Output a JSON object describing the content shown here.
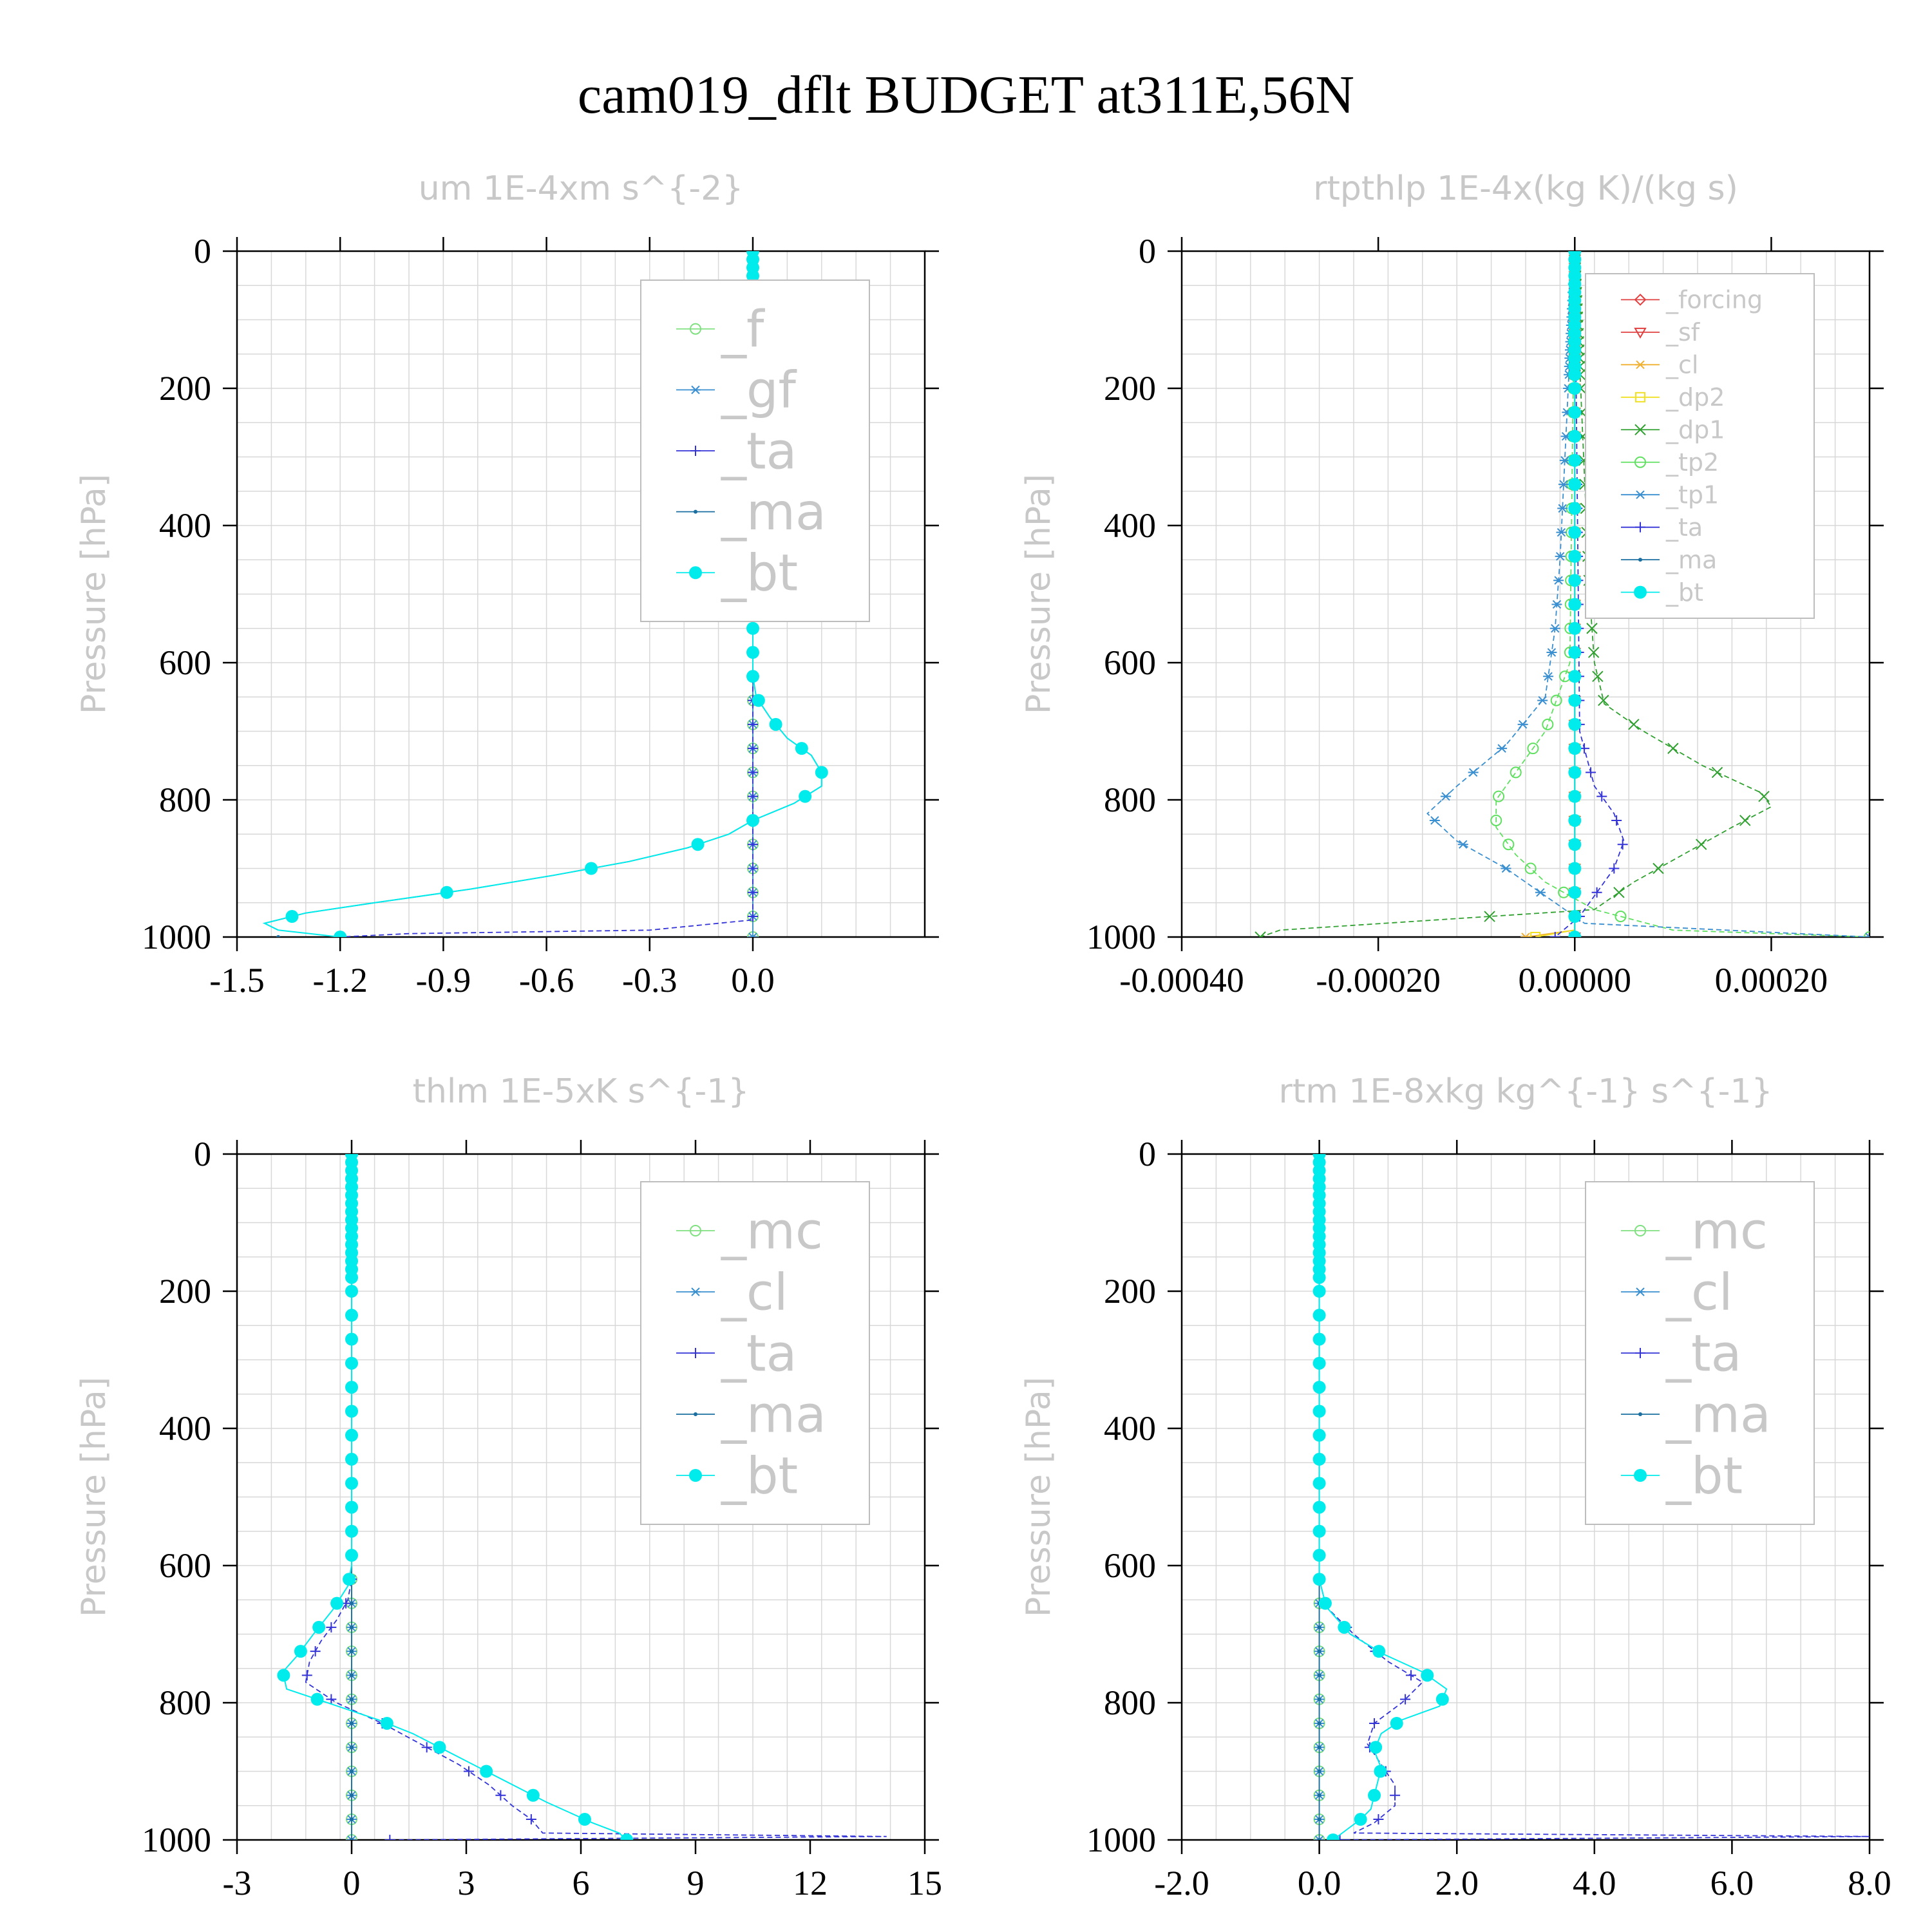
{
  "title": "cam019_dflt  BUDGET at311E,56N",
  "colors": {
    "_f": "#7fe07f",
    "_gf": "#3a8fd0",
    "_ta": "#3434d8",
    "_ma": "#1a6fa0",
    "_bt": "#00ecec",
    "_mc": "#7fe07f",
    "_cl": "#3a8fd0",
    "_forcing": "#e04040",
    "_sf": "#e04040",
    "_cl2": "#f0b030",
    "_dp2": "#f0e020",
    "_dp1": "#30a030",
    "_tp2": "#60e060",
    "_tp1": "#3a8fd0"
  },
  "chart_data": [
    {
      "type": "line",
      "title": "um  1E-4xm s^{-2}",
      "ylabel": "Pressure [hPa]",
      "xlim": [
        -1.5,
        0.5
      ],
      "ylim": [
        1000,
        0
      ],
      "xticks": [
        "-1.5",
        "-1.2",
        "-0.9",
        "-0.6",
        "-0.3",
        "0.0"
      ],
      "xtick_values": [
        -1.5,
        -1.2,
        -0.9,
        -0.6,
        -0.3,
        0.0
      ],
      "yticks": [
        "0",
        "200",
        "400",
        "600",
        "800",
        "1000"
      ],
      "grid": true,
      "legend_position": "top-right",
      "series": [
        {
          "name": "_f",
          "p": [
            0,
            1000
          ],
          "x": [
            0,
            0
          ]
        },
        {
          "name": "_gf",
          "p": [
            0,
            1000
          ],
          "x": [
            0,
            0
          ]
        },
        {
          "name": "_ta",
          "p": [
            0,
            975,
            990,
            995,
            1000
          ],
          "x": [
            0,
            0,
            -0.3,
            -1.0,
            -1.2
          ]
        },
        {
          "name": "_ma",
          "p": [
            0,
            620,
            650,
            680,
            710,
            735,
            760,
            780,
            805,
            830,
            850,
            870,
            890,
            910,
            930,
            950,
            965,
            980,
            990
          ],
          "x": [
            0,
            0,
            0.01,
            0.05,
            0.1,
            0.17,
            0.2,
            0.2,
            0.12,
            0.0,
            -0.07,
            -0.19,
            -0.36,
            -0.58,
            -0.82,
            -1.1,
            -1.3,
            -1.42,
            -1.38
          ]
        },
        {
          "name": "_bt",
          "p": [
            0,
            620,
            650,
            680,
            710,
            735,
            760,
            780,
            805,
            830,
            850,
            870,
            890,
            910,
            930,
            950,
            965,
            980,
            990,
            1000
          ],
          "x": [
            0,
            0,
            0.01,
            0.05,
            0.1,
            0.17,
            0.2,
            0.2,
            0.12,
            0.0,
            -0.07,
            -0.19,
            -0.36,
            -0.58,
            -0.82,
            -1.1,
            -1.3,
            -1.42,
            -1.38,
            -1.2
          ]
        }
      ]
    },
    {
      "type": "line",
      "title": "rtpthlp  1E-4x(kg K)/(kg s)",
      "ylabel": "Pressure [hPa]",
      "xlim": [
        -0.0004,
        0.0003
      ],
      "ylim": [
        1000,
        0
      ],
      "xticks": [
        "-0.00040",
        "-0.00020",
        "0.00000",
        "0.00020"
      ],
      "xtick_values": [
        -0.0004,
        -0.0002,
        0.0,
        0.0002
      ],
      "yticks": [
        "0",
        "200",
        "400",
        "600",
        "800",
        "1000"
      ],
      "grid": true,
      "legend_position": "top-right",
      "series": [
        {
          "name": "_forcing",
          "p": [
            0,
            1000
          ],
          "x": [
            0,
            0
          ]
        },
        {
          "name": "_sf",
          "p": [
            0,
            1000
          ],
          "x": [
            0,
            0
          ]
        },
        {
          "name": "_cl",
          "p": [
            0,
            990,
            1000
          ],
          "x": [
            0,
            0,
            -5e-05
          ]
        },
        {
          "name": "_dp2",
          "p": [
            0,
            990,
            1000
          ],
          "x": [
            0,
            0,
            -4e-05
          ]
        },
        {
          "name": "_dp1",
          "p": [
            0,
            500,
            600,
            660,
            700,
            750,
            790,
            810,
            840,
            880,
            920,
            960,
            990,
            1000
          ],
          "x": [
            0,
            1.5e-05,
            2e-05,
            3e-05,
            7e-05,
            0.00013,
            0.00019,
            0.0002,
            0.00016,
            0.00011,
            6e-05,
            2e-05,
            -0.0003,
            -0.00032
          ]
        },
        {
          "name": "_tp2",
          "p": [
            0,
            600,
            700,
            760,
            800,
            840,
            880,
            920,
            960,
            990,
            1000
          ],
          "x": [
            0,
            -5e-06,
            -3e-05,
            -6e-05,
            -8e-05,
            -8e-05,
            -6e-05,
            -3e-05,
            2e-05,
            0.0001,
            0.0003
          ]
        },
        {
          "name": "_tp1",
          "p": [
            0,
            450,
            550,
            650,
            720,
            780,
            820,
            860,
            900,
            940,
            980,
            1000
          ],
          "x": [
            0,
            -1.5e-05,
            -2e-05,
            -3e-05,
            -7e-05,
            -0.00012,
            -0.00015,
            -0.00012,
            -7e-05,
            -3e-05,
            1e-05,
            0.0003
          ]
        },
        {
          "name": "_ta",
          "p": [
            0,
            700,
            780,
            820,
            860,
            900,
            940,
            970,
            1000
          ],
          "x": [
            0,
            5e-06,
            2e-05,
            4e-05,
            5e-05,
            4e-05,
            2e-05,
            5e-06,
            -2e-05
          ]
        },
        {
          "name": "_ma",
          "p": [
            0,
            1000
          ],
          "x": [
            0,
            0
          ]
        },
        {
          "name": "_bt",
          "p": [
            0,
            1000
          ],
          "x": [
            0,
            0
          ]
        }
      ]
    },
    {
      "type": "line",
      "title": "thlm  1E-5xK s^{-1}",
      "ylabel": "Pressure [hPa]",
      "xlim": [
        -3,
        15
      ],
      "ylim": [
        1000,
        0
      ],
      "xticks": [
        "-3",
        "0",
        "3",
        "6",
        "9",
        "12",
        "15"
      ],
      "xtick_values": [
        -3,
        0,
        3,
        6,
        9,
        12,
        15
      ],
      "yticks": [
        "0",
        "200",
        "400",
        "600",
        "800",
        "1000"
      ],
      "grid": true,
      "legend_position": "top-right",
      "series": [
        {
          "name": "_mc",
          "p": [
            0,
            1000
          ],
          "x": [
            0,
            0
          ]
        },
        {
          "name": "_cl",
          "p": [
            0,
            1000
          ],
          "x": [
            0,
            0
          ]
        },
        {
          "name": "_ta",
          "p": [
            0,
            620,
            650,
            680,
            710,
            740,
            770,
            800,
            830,
            860,
            890,
            920,
            950,
            970,
            990,
            995,
            1000
          ],
          "x": [
            0,
            0,
            -0.1,
            -0.4,
            -0.8,
            -1.1,
            -1.2,
            -0.4,
            0.8,
            1.8,
            2.8,
            3.6,
            4.2,
            4.7,
            5.0,
            14,
            1
          ]
        },
        {
          "name": "_ma",
          "p": [
            0,
            1000
          ],
          "x": [
            0,
            0
          ]
        },
        {
          "name": "_bt",
          "p": [
            0,
            600,
            630,
            665,
            700,
            730,
            755,
            780,
            825,
            845,
            865,
            885,
            905,
            925,
            945,
            960,
            975,
            990,
            1000
          ],
          "x": [
            0,
            0,
            -0.1,
            -0.5,
            -1.0,
            -1.4,
            -1.8,
            -1.7,
            0.7,
            1.6,
            2.3,
            3.0,
            3.7,
            4.4,
            5.1,
            5.7,
            6.3,
            7.0,
            7.2
          ]
        }
      ]
    },
    {
      "type": "line",
      "title": "rtm  1E-8xkg kg^{-1} s^{-1}",
      "ylabel": "Pressure [hPa]",
      "xlim": [
        -2.0,
        8.0
      ],
      "ylim": [
        1000,
        0
      ],
      "xticks": [
        "-2.0",
        "0.0",
        "2.0",
        "4.0",
        "6.0",
        "8.0"
      ],
      "xtick_values": [
        -2.0,
        0.0,
        2.0,
        4.0,
        6.0,
        8.0
      ],
      "yticks": [
        "0",
        "200",
        "400",
        "600",
        "800",
        "1000"
      ],
      "grid": true,
      "legend_position": "top-right",
      "series": [
        {
          "name": "_mc",
          "p": [
            0,
            1000
          ],
          "x": [
            0,
            0
          ]
        },
        {
          "name": "_cl",
          "p": [
            0,
            1000
          ],
          "x": [
            0,
            0
          ]
        },
        {
          "name": "_ta",
          "p": [
            0,
            620,
            660,
            700,
            740,
            770,
            800,
            830,
            860,
            890,
            920,
            950,
            975,
            990,
            995,
            1000
          ],
          "x": [
            0,
            0,
            0.1,
            0.5,
            1.0,
            1.5,
            1.2,
            0.8,
            0.7,
            0.9,
            1.1,
            1.1,
            0.8,
            0.5,
            8.0,
            0.3
          ]
        },
        {
          "name": "_ma",
          "p": [
            0,
            1000
          ],
          "x": [
            0,
            0
          ]
        },
        {
          "name": "_bt",
          "p": [
            0,
            620,
            660,
            700,
            730,
            755,
            780,
            805,
            825,
            845,
            870,
            895,
            915,
            935,
            955,
            970,
            985,
            1000
          ],
          "x": [
            0,
            0,
            0.1,
            0.45,
            0.95,
            1.5,
            1.85,
            1.75,
            1.2,
            0.9,
            0.8,
            0.9,
            0.85,
            0.8,
            0.75,
            0.6,
            0.4,
            0.2
          ]
        }
      ]
    }
  ]
}
